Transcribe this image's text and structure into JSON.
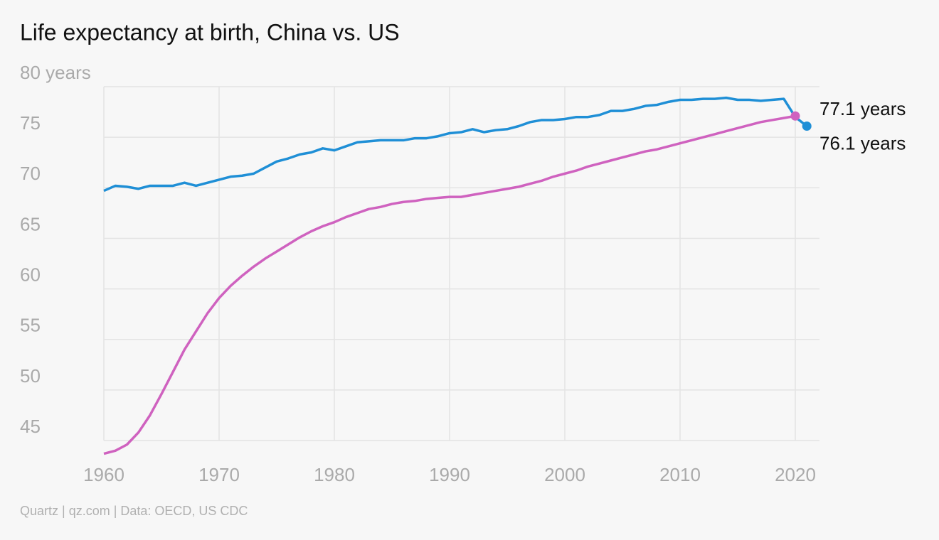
{
  "chart_data": {
    "type": "line",
    "title": "Life expectancy at birth, China vs. US",
    "source": "Quartz | qz.com | Data: OECD, US CDC",
    "x": [
      1960,
      1961,
      1962,
      1963,
      1964,
      1965,
      1966,
      1967,
      1968,
      1969,
      1970,
      1971,
      1972,
      1973,
      1974,
      1975,
      1976,
      1977,
      1978,
      1979,
      1980,
      1981,
      1982,
      1983,
      1984,
      1985,
      1986,
      1987,
      1988,
      1989,
      1990,
      1991,
      1992,
      1993,
      1994,
      1995,
      1996,
      1997,
      1998,
      1999,
      2000,
      2001,
      2002,
      2003,
      2004,
      2005,
      2006,
      2007,
      2008,
      2009,
      2010,
      2011,
      2012,
      2013,
      2014,
      2015,
      2016,
      2017,
      2018,
      2019,
      2020,
      2021
    ],
    "series": [
      {
        "color": "#1f8fd6",
        "values": [
          69.7,
          70.2,
          70.1,
          69.9,
          70.2,
          70.2,
          70.2,
          70.5,
          70.2,
          70.5,
          70.8,
          71.1,
          71.2,
          71.4,
          72.0,
          72.6,
          72.9,
          73.3,
          73.5,
          73.9,
          73.7,
          74.1,
          74.5,
          74.6,
          74.7,
          74.7,
          74.7,
          74.9,
          74.9,
          75.1,
          75.4,
          75.5,
          75.8,
          75.5,
          75.7,
          75.8,
          76.1,
          76.5,
          76.7,
          76.7,
          76.8,
          77.0,
          77.0,
          77.2,
          77.6,
          77.6,
          77.8,
          78.1,
          78.2,
          78.5,
          78.7,
          78.7,
          78.8,
          78.8,
          78.9,
          78.7,
          78.7,
          78.6,
          78.7,
          78.8,
          77.0,
          76.1
        ],
        "value_labels": [
          null,
          null,
          null,
          null,
          null,
          null,
          null,
          null,
          null,
          null,
          null,
          null,
          null,
          null,
          null,
          null,
          null,
          null,
          null,
          null,
          null,
          null,
          null,
          null,
          null,
          null,
          null,
          null,
          null,
          null,
          null,
          null,
          null,
          null,
          null,
          null,
          null,
          null,
          null,
          null,
          null,
          null,
          null,
          null,
          null,
          null,
          null,
          null,
          null,
          null,
          null,
          null,
          null,
          null,
          null,
          null,
          null,
          null,
          null,
          null,
          null,
          "76.1 years"
        ]
      },
      {
        "color": "#cf62bf",
        "values": [
          43.7,
          44.0,
          44.6,
          45.8,
          47.5,
          49.6,
          51.8,
          54.0,
          55.8,
          57.6,
          59.1,
          60.3,
          61.3,
          62.2,
          63.0,
          63.7,
          64.4,
          65.1,
          65.7,
          66.2,
          66.6,
          67.1,
          67.5,
          67.9,
          68.1,
          68.4,
          68.6,
          68.7,
          68.9,
          69.0,
          69.1,
          69.1,
          69.3,
          69.5,
          69.7,
          69.9,
          70.1,
          70.4,
          70.7,
          71.1,
          71.4,
          71.7,
          72.1,
          72.4,
          72.7,
          73.0,
          73.3,
          73.6,
          73.8,
          74.1,
          74.4,
          74.7,
          75.0,
          75.3,
          75.6,
          75.9,
          76.2,
          76.5,
          76.7,
          76.9,
          77.1,
          null
        ],
        "value_labels": [
          null,
          null,
          null,
          null,
          null,
          null,
          null,
          null,
          null,
          null,
          null,
          null,
          null,
          null,
          null,
          null,
          null,
          null,
          null,
          null,
          null,
          null,
          null,
          null,
          null,
          null,
          null,
          null,
          null,
          null,
          null,
          null,
          null,
          null,
          null,
          null,
          null,
          null,
          null,
          null,
          null,
          null,
          null,
          null,
          null,
          null,
          null,
          null,
          null,
          null,
          null,
          null,
          null,
          null,
          null,
          null,
          null,
          null,
          null,
          null,
          "77.1 years",
          null
        ]
      }
    ],
    "xlim": [
      1960,
      2021
    ],
    "xticks": [
      1960,
      1970,
      1980,
      1990,
      2000,
      2010,
      2020
    ],
    "ylim": [
      43.5,
      80
    ],
    "yticks": [
      45,
      50,
      55,
      60,
      65,
      70,
      75,
      {
        "value": 80,
        "label": "80 years"
      }
    ],
    "grid": true
  }
}
